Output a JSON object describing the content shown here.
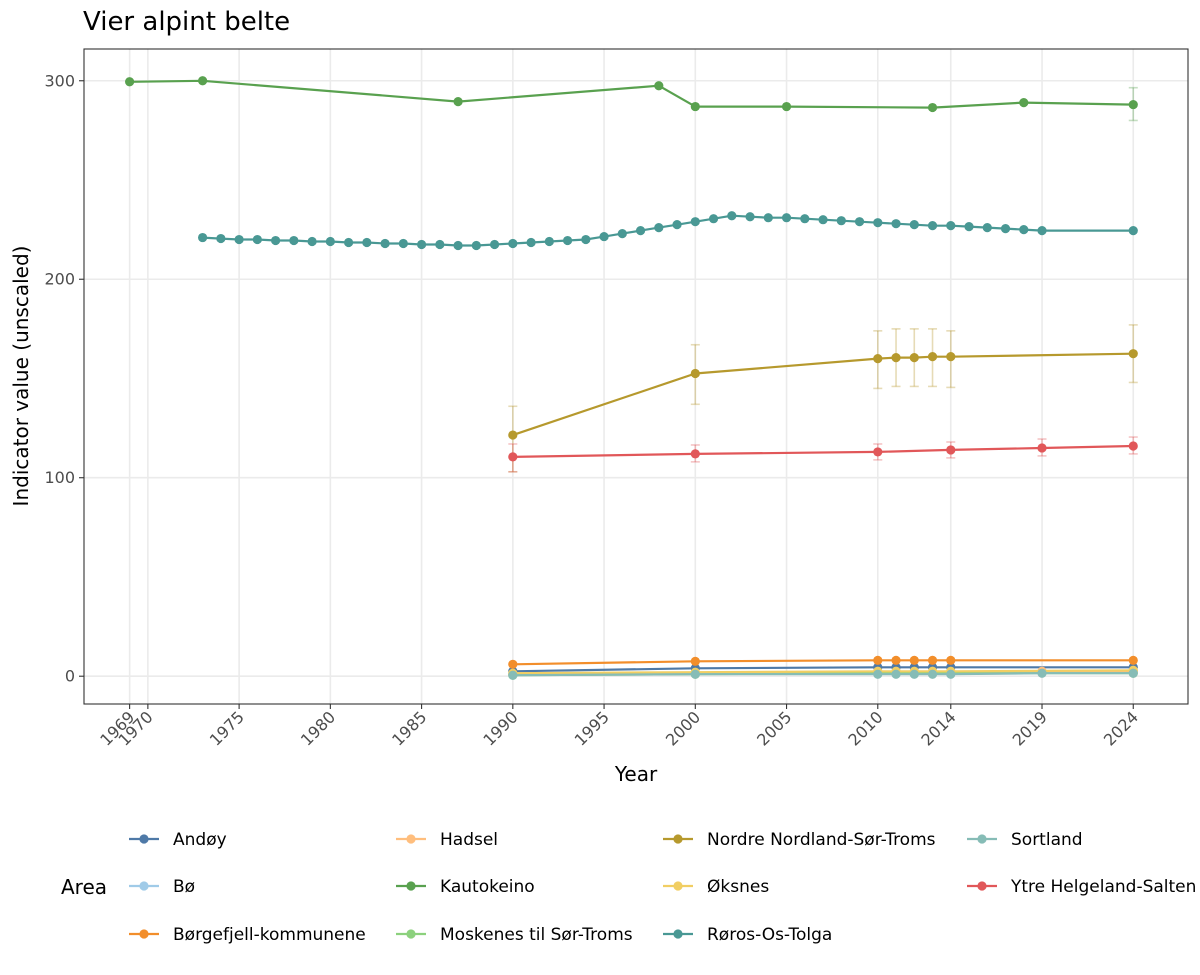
{
  "chart_data": {
    "type": "line",
    "title": "Vier alpint belte",
    "xlabel": "Year",
    "ylabel": "Indicator value (unscaled)",
    "xlim": [
      1966.5,
      2027.0
    ],
    "ylim": [
      -14,
      316
    ],
    "x_ticks": [
      1969,
      1970,
      1975,
      1980,
      1985,
      1990,
      1995,
      2000,
      2005,
      2010,
      2014,
      2019,
      2024
    ],
    "y_ticks": [
      0,
      100,
      200,
      300
    ],
    "grid": true,
    "legend": {
      "title": "Area",
      "position": "bottom",
      "columns": [
        [
          "Andøy",
          "Bø",
          "Børgefjell-kommunene"
        ],
        [
          "Hadsel",
          "Kautokeino",
          "Moskenes til Sør-Troms"
        ],
        [
          "Nordre Nordland-Sør-Troms",
          "Øksnes",
          "Røros-Os-Tolga"
        ],
        [
          "Sortland",
          "Ytre Helgeland-Salten"
        ]
      ]
    },
    "series": [
      {
        "name": "Andøy",
        "color": "#4e79a7",
        "x": [
          1990,
          2000,
          2010,
          2011,
          2012,
          2013,
          2014,
          2024
        ],
        "y": [
          2.5,
          4,
          4.5,
          4.5,
          4.5,
          4.5,
          4.5,
          4.5
        ]
      },
      {
        "name": "Bø",
        "color": "#a0cbe8",
        "x": [
          1990,
          2000,
          2010,
          2011,
          2012,
          2013,
          2014,
          2024
        ],
        "y": [
          1,
          1.5,
          2,
          2,
          2,
          2,
          2,
          2
        ]
      },
      {
        "name": "Børgefjell-kommunene",
        "color": "#f28e2b",
        "x": [
          1990,
          2000,
          2010,
          2011,
          2012,
          2013,
          2014,
          2024
        ],
        "y": [
          6,
          7.5,
          8,
          8,
          8,
          8,
          8,
          8
        ]
      },
      {
        "name": "Hadsel",
        "color": "#ffbe7d",
        "x": [
          1990,
          2000,
          2010,
          2011,
          2012,
          2013,
          2014,
          2019,
          2024
        ],
        "y": [
          1,
          1.5,
          2,
          2,
          2,
          2,
          2,
          2.5,
          2.5
        ]
      },
      {
        "name": "Kautokeino",
        "color": "#59a14f",
        "x": [
          1969,
          1973,
          1987,
          1998,
          2000,
          2005,
          2013,
          2018,
          2024
        ],
        "y": [
          299.5,
          300,
          289.5,
          297.5,
          287,
          287,
          286.5,
          289,
          288
        ],
        "err_x": [
          2024
        ],
        "err_low": [
          280
        ],
        "err_high": [
          296.5
        ]
      },
      {
        "name": "Moskenes til Sør-Troms",
        "color": "#8cd17d",
        "x": [
          1990,
          2000,
          2010,
          2011,
          2012,
          2013,
          2014,
          2024
        ],
        "y": [
          0.5,
          1,
          1.5,
          1.5,
          1.5,
          1.5,
          1.5,
          1.5
        ]
      },
      {
        "name": "Nordre Nordland-Sør-Troms",
        "color": "#b6992d",
        "x": [
          1990,
          2000,
          2010,
          2011,
          2012,
          2013,
          2014,
          2024
        ],
        "y": [
          121.5,
          152.5,
          160,
          160.5,
          160.5,
          161,
          161,
          162.5
        ],
        "err_x": [
          1990,
          2000,
          2010,
          2011,
          2012,
          2013,
          2014,
          2024
        ],
        "err_low": [
          103,
          137,
          145,
          146,
          146,
          146,
          145.5,
          148
        ],
        "err_high": [
          136,
          167,
          174,
          175,
          175,
          175,
          174,
          177
        ]
      },
      {
        "name": "Øksnes",
        "color": "#f1ce63",
        "x": [
          1990,
          2000,
          2010,
          2011,
          2012,
          2013,
          2014,
          2024
        ],
        "y": [
          1.5,
          2,
          2.5,
          2.5,
          2.5,
          2.5,
          2.5,
          3
        ]
      },
      {
        "name": "Røros-Os-Tolga",
        "color": "#499894",
        "x": [
          1973,
          1974,
          1975,
          1976,
          1977,
          1978,
          1979,
          1980,
          1981,
          1982,
          1983,
          1984,
          1985,
          1986,
          1987,
          1988,
          1989,
          1990,
          1991,
          1992,
          1993,
          1994,
          1995,
          1996,
          1997,
          1998,
          1999,
          2000,
          2001,
          2002,
          2003,
          2004,
          2005,
          2006,
          2007,
          2008,
          2009,
          2010,
          2011,
          2012,
          2013,
          2014,
          2015,
          2016,
          2017,
          2018,
          2019,
          2024
        ],
        "y": [
          221,
          220.5,
          220,
          220,
          219.5,
          219.5,
          219,
          219,
          218.5,
          218.5,
          218,
          218,
          217.5,
          217.5,
          217,
          217,
          217.5,
          218,
          218.5,
          219,
          219.5,
          220,
          221.5,
          223,
          224.5,
          226,
          227.5,
          229,
          230.5,
          232,
          231.5,
          231,
          231,
          230.5,
          230,
          229.5,
          229,
          228.5,
          228,
          227.5,
          227,
          227,
          226.5,
          226,
          225.5,
          225,
          224.5,
          224.5
        ]
      },
      {
        "name": "Sortland",
        "color": "#86bcb6",
        "x": [
          1990,
          2000,
          2010,
          2011,
          2012,
          2013,
          2014,
          2019,
          2024
        ],
        "y": [
          0.5,
          1,
          1,
          1,
          1,
          1,
          1,
          1.5,
          1.5
        ]
      },
      {
        "name": "Ytre Helgeland-Salten",
        "color": "#e15759",
        "x": [
          1990,
          2000,
          2010,
          2014,
          2019,
          2024
        ],
        "y": [
          110.5,
          112,
          113,
          114,
          115,
          116
        ],
        "err_x": [
          1990,
          2000,
          2010,
          2014,
          2019,
          2024
        ],
        "err_low": [
          103,
          108,
          109,
          110,
          111,
          112
        ],
        "err_high": [
          117,
          116.5,
          117,
          118,
          119.5,
          120.5
        ]
      }
    ]
  }
}
